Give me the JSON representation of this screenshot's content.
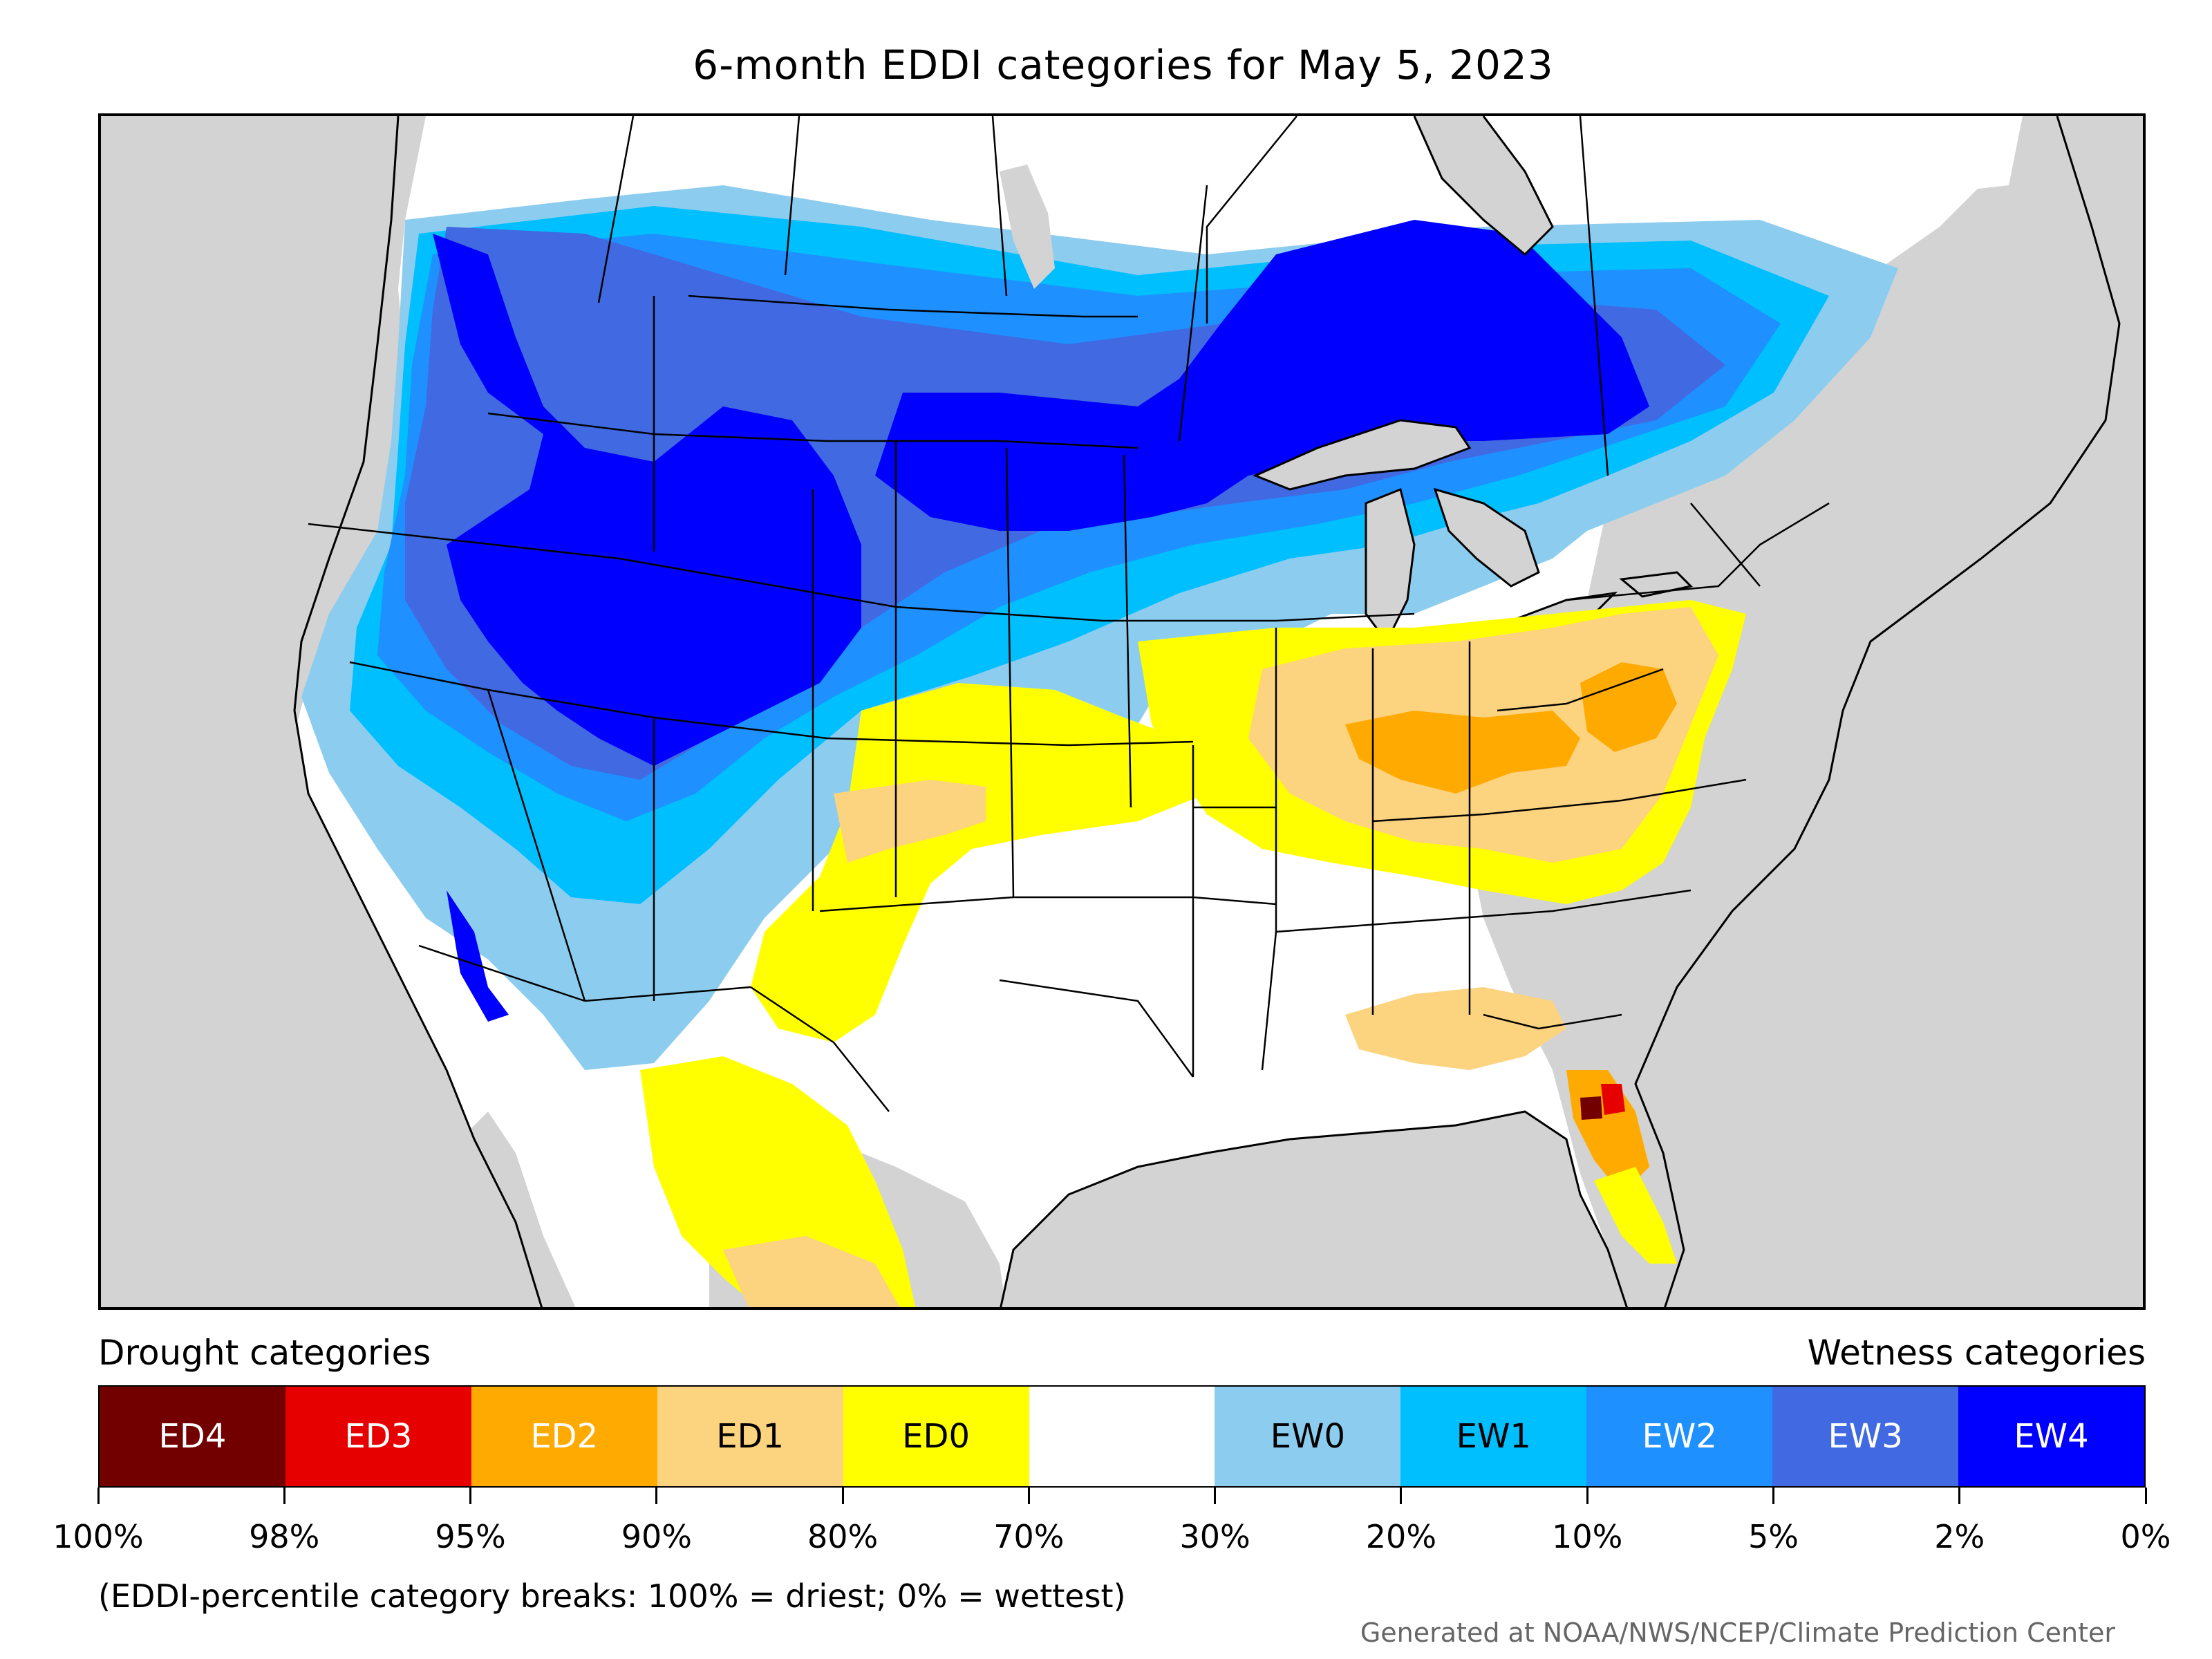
{
  "title": "6-month EDDI categories for May 5, 2023",
  "legend": {
    "drought_label": "Drought categories",
    "wetness_label": "Wetness categories",
    "categories": [
      {
        "label": "ED4",
        "color": "#730000",
        "text_color": "#ffffff"
      },
      {
        "label": "ED3",
        "color": "#e60000",
        "text_color": "#ffffff"
      },
      {
        "label": "ED2",
        "color": "#ffaa00",
        "text_color": "#ffffff"
      },
      {
        "label": "ED1",
        "color": "#fcd37f",
        "text_color": "#000000"
      },
      {
        "label": "ED0",
        "color": "#ffff00",
        "text_color": "#000000"
      },
      {
        "label": "",
        "color": "#ffffff",
        "text_color": "#000000"
      },
      {
        "label": "EW0",
        "color": "#8ccdef",
        "text_color": "#000000"
      },
      {
        "label": "EW1",
        "color": "#00bfff",
        "text_color": "#000000"
      },
      {
        "label": "EW2",
        "color": "#1e90ff",
        "text_color": "#ffffff"
      },
      {
        "label": "EW3",
        "color": "#4169e1",
        "text_color": "#ffffff"
      },
      {
        "label": "EW4",
        "color": "#0000ff",
        "text_color": "#ffffff"
      }
    ],
    "ticks": [
      "100%",
      "98%",
      "95%",
      "90%",
      "80%",
      "70%",
      "30%",
      "20%",
      "10%",
      "5%",
      "2%",
      "0%"
    ]
  },
  "note": "(EDDI-percentile category breaks: 100% = driest; 0% = wettest)",
  "credit": "Generated at NOAA/NWS/NCEP/Climate Prediction Center",
  "map": {
    "background_color": "#d3d3d3",
    "water_color": "#d3d3d3",
    "regions": [
      {
        "name": "pacific-northwest-wet",
        "category": "EW3"
      },
      {
        "name": "great-basin-wet",
        "category": "EW4"
      },
      {
        "name": "northern-plains-wet",
        "category": "EW4"
      },
      {
        "name": "canada-prairies-wet",
        "category": "EW2"
      },
      {
        "name": "ontario-quebec-wet",
        "category": "EW4"
      },
      {
        "name": "california-coast-wet",
        "category": "EW1"
      },
      {
        "name": "southwest-wet",
        "category": "EW0"
      },
      {
        "name": "ohio-valley-dry",
        "category": "ED1"
      },
      {
        "name": "kentucky-dry",
        "category": "ED2"
      },
      {
        "name": "virginia-dry",
        "category": "ED2"
      },
      {
        "name": "southern-plains-dry",
        "category": "ED0"
      },
      {
        "name": "texas-panhandle-dry",
        "category": "ED1"
      },
      {
        "name": "florida-dry",
        "category": "ED2"
      },
      {
        "name": "florida-core",
        "category": "ED4"
      },
      {
        "name": "mexico-dry",
        "category": "ED0"
      }
    ]
  }
}
